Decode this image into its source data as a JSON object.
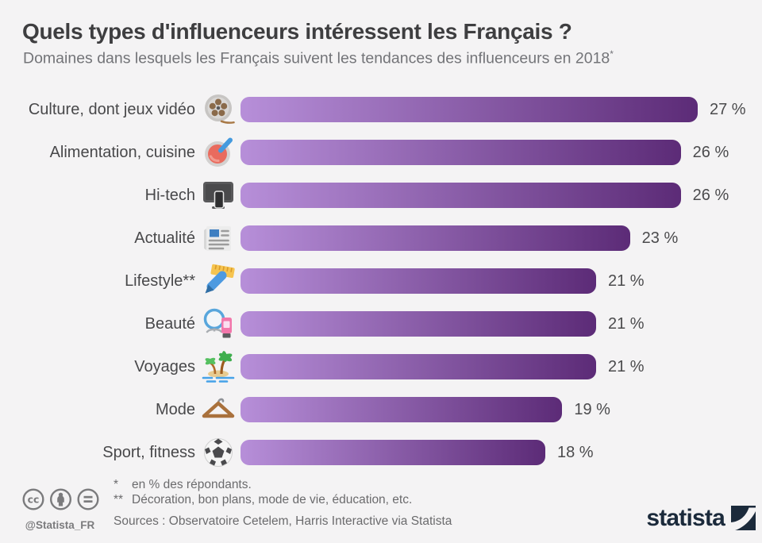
{
  "header": {
    "title": "Quels types d'influenceurs intéressent les Français ?",
    "subtitle": "Domaines dans lesquels les Français suivent les tendances des influenceurs en 2018",
    "subtitle_footnote_marker": "*"
  },
  "chart_data": {
    "type": "bar",
    "orientation": "horizontal",
    "unit": "%",
    "xlim": [
      0,
      27
    ],
    "grid": false,
    "legend": "none",
    "title": "Quels types d'influenceurs intéressent les Français ?",
    "bar_gradient": [
      "#b78fd9",
      "#5c2b77"
    ],
    "rows": [
      {
        "label": "Culture, dont jeux vidéo",
        "icon": "film-reel",
        "value": 27,
        "value_label": "27 %"
      },
      {
        "label": "Alimentation, cuisine",
        "icon": "food-bowl",
        "value": 26,
        "value_label": "26 %"
      },
      {
        "label": "Hi-tech",
        "icon": "computer-monitor",
        "value": 26,
        "value_label": "26 %"
      },
      {
        "label": "Actualité",
        "icon": "newspaper",
        "value": 23,
        "value_label": "23 %"
      },
      {
        "label": "Lifestyle**",
        "icon": "pen-and-ruler",
        "value": 21,
        "value_label": "21 %"
      },
      {
        "label": "Beauté",
        "icon": "mirror-cosmetics",
        "value": 21,
        "value_label": "21 %"
      },
      {
        "label": "Voyages",
        "icon": "palm-island",
        "value": 21,
        "value_label": "21 %"
      },
      {
        "label": "Mode",
        "icon": "clothes-hanger",
        "value": 19,
        "value_label": "19 %"
      },
      {
        "label": "Sport, fitness",
        "icon": "soccer-ball",
        "value": 18,
        "value_label": "18 %"
      }
    ]
  },
  "footer": {
    "license_icons": [
      "cc",
      "attribution",
      "no-derivatives"
    ],
    "handle": "@Statista_FR",
    "footnotes": [
      {
        "marker": "*",
        "text": "en % des répondants."
      },
      {
        "marker": "**",
        "text": "Décoration, bon plans, mode de vie, éducation, etc."
      }
    ],
    "sources": "Sources : Observatoire Cetelem, Harris Interactive via Statista",
    "brand": "statista",
    "brand_color": "#1b2a3b",
    "background_color": "#f4f3f4"
  }
}
